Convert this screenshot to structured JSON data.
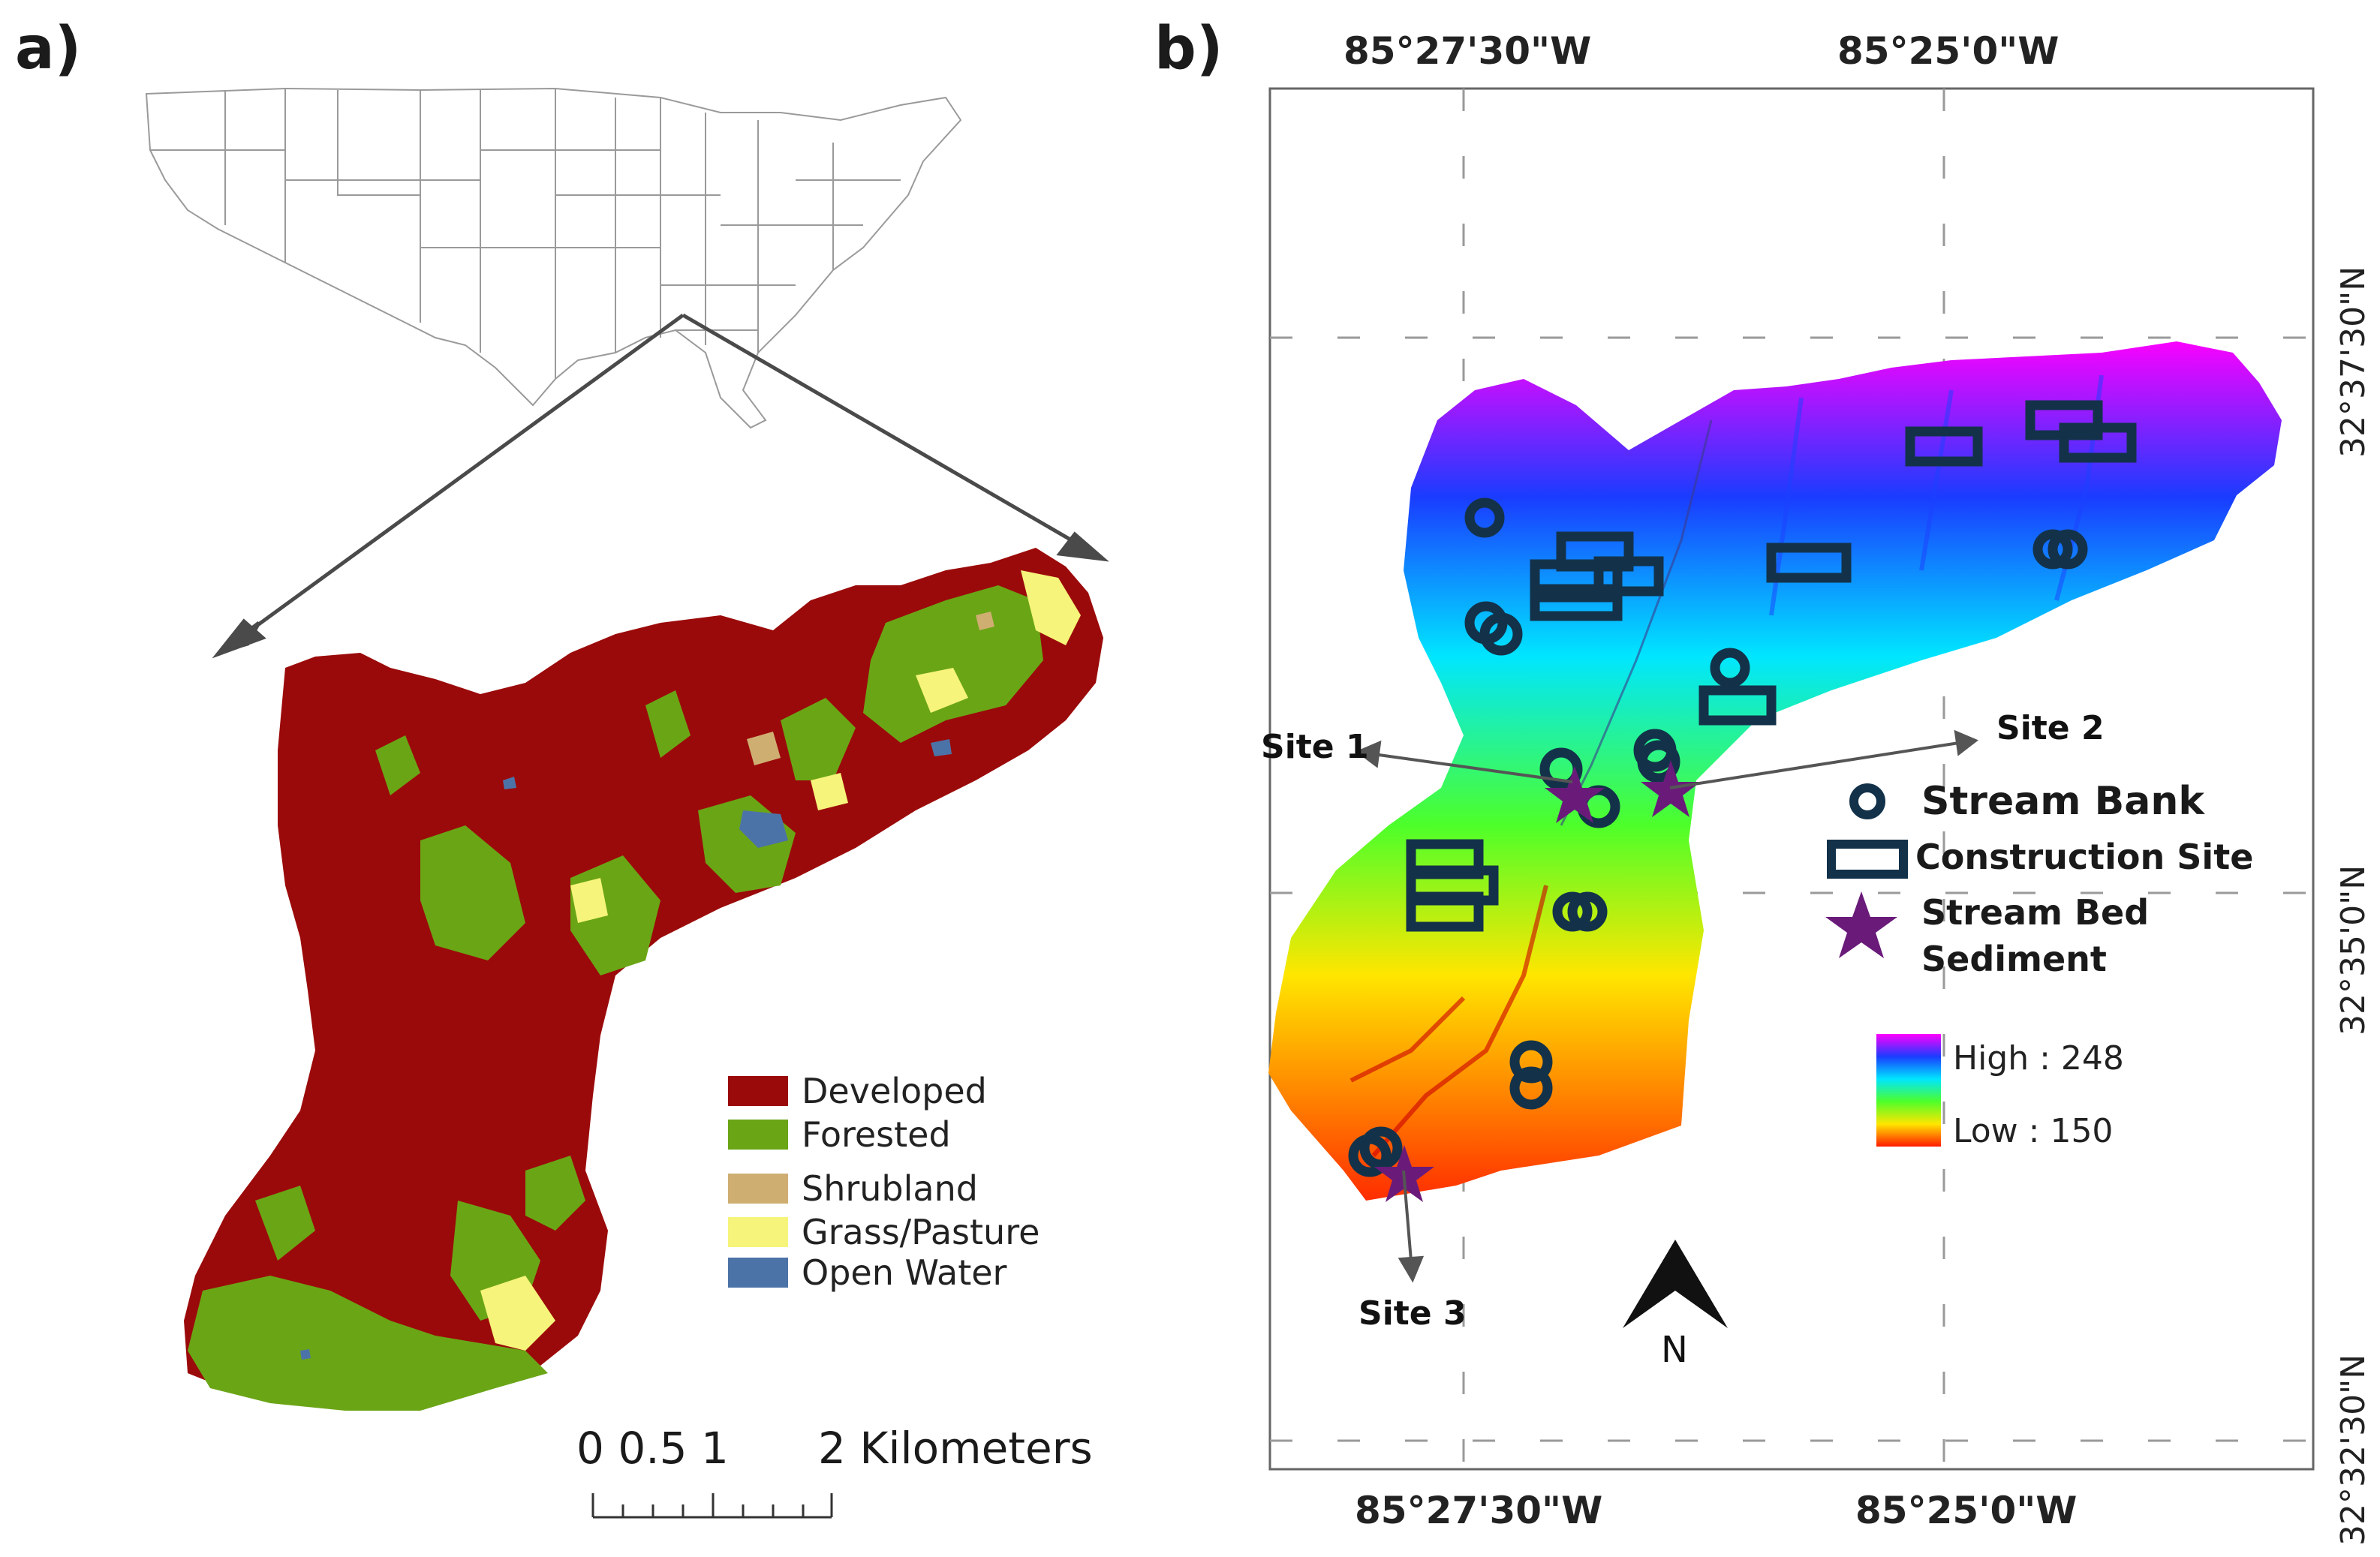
{
  "panel_a": {
    "label": "a)",
    "legend": [
      {
        "label": "Developed",
        "color": "#9b0a0a"
      },
      {
        "label": "Forested",
        "color": "#6aa516"
      },
      {
        "label": "Shrubland",
        "color": "#cfae72"
      },
      {
        "label": "Grass/Pasture",
        "color": "#f6f47a"
      },
      {
        "label": "Open Water",
        "color": "#4c73a8"
      }
    ],
    "scale_bar": {
      "ticks_left": "0 0.5 1",
      "ticks_right": "2 Kilometers"
    }
  },
  "panel_b": {
    "label": "b)",
    "top_lon_labels": [
      "85°27'30\"W",
      "85°25'0\"W"
    ],
    "bottom_lon_labels": [
      "85°27'30\"W",
      "85°25'0\"W"
    ],
    "right_lat_labels": [
      "32°37'30\"N",
      "32°35'0\"N",
      "32°32'30\"N"
    ],
    "sites": {
      "site1": "Site 1",
      "site2": "Site 2",
      "site3": "Site 3"
    },
    "legend": {
      "stream_bank": "Stream Bank",
      "construction_site": "Construction Site",
      "stream_bed_line1": "Stream Bed",
      "stream_bed_line2": "Sediment"
    },
    "elevation": {
      "high": "High : 248",
      "low": "Low : 150"
    },
    "north": "N",
    "colors": {
      "marker_dark": "#13324a",
      "star": "#6a1b7a",
      "frame": "#444444"
    }
  }
}
